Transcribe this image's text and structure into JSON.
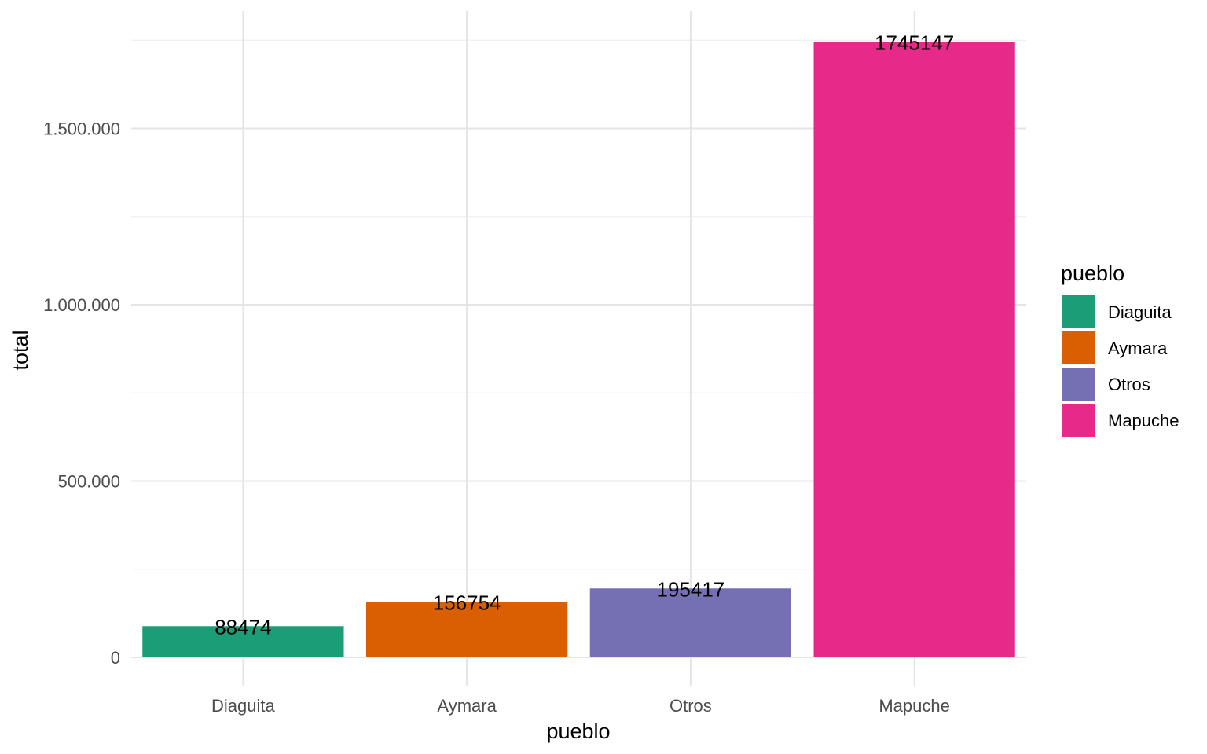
{
  "chart_data": {
    "type": "bar",
    "xlabel": "pueblo",
    "ylabel": "total",
    "categories": [
      "Diaguita",
      "Aymara",
      "Otros",
      "Mapuche"
    ],
    "values": [
      88474,
      156754,
      195417,
      1745147
    ],
    "data_labels": [
      "88474",
      "156754",
      "195417",
      "1745147"
    ],
    "colors": [
      "#1b9e77",
      "#d95f02",
      "#7570b3",
      "#e7298a"
    ],
    "ylim": [
      -80000,
      1830000
    ],
    "yticks": [
      0,
      500000,
      1000000,
      1500000
    ],
    "ytick_labels": [
      "0",
      "500.000",
      "1.000.000",
      "1.500.000"
    ],
    "grid": true,
    "legend": {
      "title": "pueblo",
      "placement": "right",
      "entries": [
        "Diaguita",
        "Aymara",
        "Otros",
        "Mapuche"
      ]
    }
  }
}
